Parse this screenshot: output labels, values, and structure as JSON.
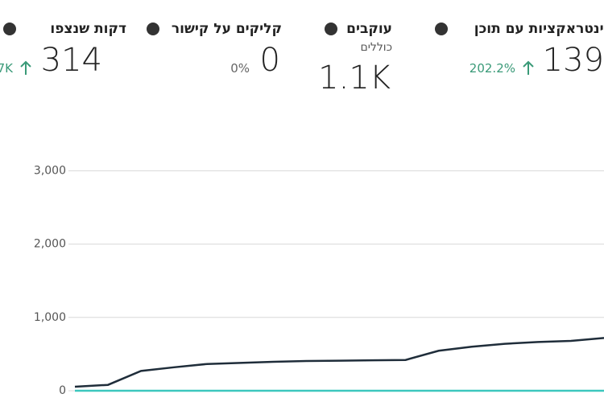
{
  "metrics": [
    {
      "title": "אינטראקציות עם תוכן",
      "value": "139",
      "change": "202.2%"
    },
    {
      "title": "עוקבים",
      "subtitle": "כוללים",
      "value": "1.1K"
    },
    {
      "title": "קליקים על קישור",
      "value": "0",
      "change": "0%"
    },
    {
      "title": "דקות שנצפו",
      "value": "314",
      "change": "7K"
    }
  ],
  "chart_data": {
    "type": "line",
    "categories": [
      null,
      null,
      null,
      null,
      null,
      null,
      null,
      null,
      null,
      null,
      null,
      null,
      null,
      null,
      null,
      null,
      null
    ],
    "series": [
      {
        "color": "#1f2d3a",
        "values": [
          55,
          80,
          270,
          320,
          365,
          380,
          395,
          405,
          410,
          415,
          420,
          545,
          600,
          640,
          665,
          680,
          720
        ]
      },
      {
        "color": "#3cc7be",
        "values": [
          0,
          0,
          0,
          0,
          0,
          0,
          0,
          0,
          0,
          0,
          0,
          0,
          0,
          0,
          0,
          0,
          0
        ]
      }
    ],
    "ylim": [
      0,
      3300
    ],
    "yticks": [
      0,
      {
        "value": 1000,
        "label": "1,000"
      },
      {
        "value": 2000,
        "label": "2,000"
      },
      {
        "value": 3000,
        "label": "3,000"
      }
    ],
    "grid": true
  }
}
